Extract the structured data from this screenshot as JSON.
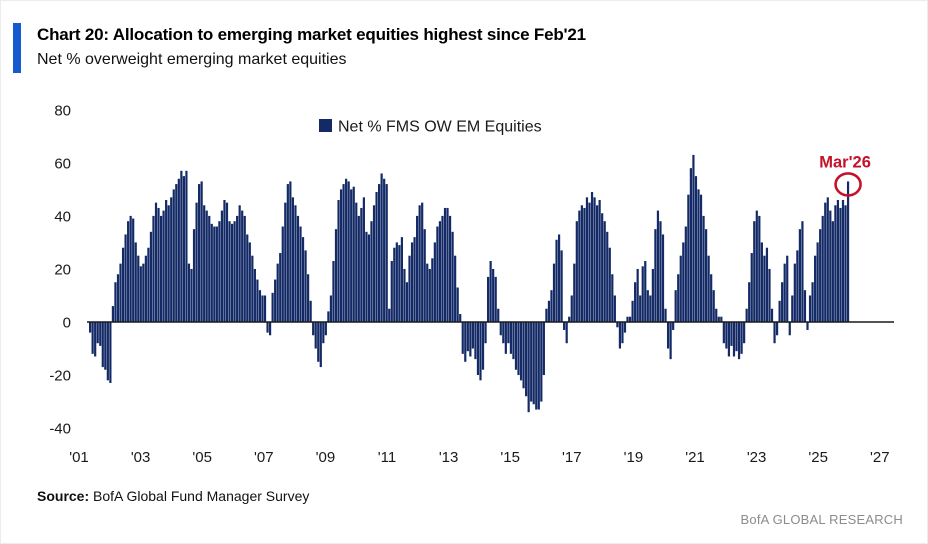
{
  "header": {
    "title": "Chart 20: Allocation to emerging market equities highest since Feb'21",
    "subtitle": "Net % overweight emerging market equities",
    "accent_color": "#1659d1"
  },
  "legend": {
    "label": "Net % FMS OW EM Equities",
    "swatch_color": "#132a66"
  },
  "annotation": {
    "label": "Mar'26",
    "value": 53,
    "color": "#c4122a"
  },
  "footer": {
    "source_label": "Source:",
    "source_text": " BofA Global Fund Manager Survey",
    "brand": "BofA GLOBAL RESEARCH"
  },
  "chart_data": {
    "type": "bar",
    "title": "Net % FMS OW EM Equities",
    "ylabel": "Net % overweight",
    "frequency": "monthly",
    "start": "2001-04",
    "end": "2026-03",
    "ylim": [
      -40,
      80
    ],
    "yticks": [
      80,
      60,
      40,
      20,
      0,
      -20,
      -40
    ],
    "xtick_labels": [
      "'01",
      "'03",
      "'05",
      "'07",
      "'09",
      "'11",
      "'13",
      "'15",
      "'17",
      "'19",
      "'21",
      "'23",
      "'25",
      "'27"
    ],
    "xtick_years": [
      2001,
      2003,
      2005,
      2007,
      2009,
      2011,
      2013,
      2015,
      2017,
      2019,
      2021,
      2023,
      2025,
      2027
    ],
    "grid": false,
    "legend_position": "top-center",
    "bar_color": "#132a66",
    "axis_color": "#1a1a1a",
    "values": [
      -4,
      -12,
      -13,
      -8,
      -9,
      -17,
      -18,
      -22,
      -23,
      6,
      15,
      18,
      22,
      28,
      33,
      38,
      40,
      39,
      30,
      25,
      21,
      22,
      25,
      28,
      34,
      40,
      45,
      43,
      40,
      42,
      46,
      44,
      47,
      50,
      52,
      54,
      57,
      55,
      57,
      22,
      20,
      35,
      45,
      52,
      53,
      44,
      42,
      40,
      37,
      36,
      36,
      38,
      42,
      46,
      45,
      38,
      37,
      38,
      40,
      44,
      42,
      40,
      33,
      30,
      25,
      20,
      16,
      12,
      10,
      10,
      -4,
      -5,
      11,
      16,
      22,
      26,
      36,
      45,
      52,
      53,
      47,
      44,
      40,
      36,
      32,
      27,
      18,
      8,
      -5,
      -10,
      -15,
      -17,
      -8,
      -5,
      4,
      10,
      23,
      35,
      46,
      50,
      52,
      54,
      53,
      50,
      51,
      45,
      40,
      43,
      47,
      34,
      33,
      38,
      44,
      49,
      52,
      56,
      54,
      52,
      5,
      23,
      28,
      30,
      29,
      32,
      20,
      15,
      25,
      30,
      32,
      40,
      44,
      45,
      35,
      22,
      20,
      24,
      30,
      36,
      38,
      40,
      43,
      43,
      40,
      34,
      25,
      13,
      3,
      -12,
      -15,
      -11,
      -13,
      -10,
      -14,
      -20,
      -22,
      -18,
      -8,
      17,
      23,
      20,
      17,
      5,
      -5,
      -8,
      -12,
      -8,
      -12,
      -14,
      -18,
      -20,
      -22,
      -25,
      -28,
      -34,
      -30,
      -31,
      -33,
      -33,
      -30,
      -20,
      5,
      8,
      12,
      22,
      31,
      33,
      27,
      -3,
      -8,
      2,
      10,
      22,
      38,
      42,
      44,
      43,
      47,
      45,
      49,
      47,
      44,
      46,
      41,
      38,
      34,
      28,
      18,
      10,
      -2,
      -10,
      -8,
      -4,
      2,
      2,
      8,
      15,
      20,
      10,
      21,
      23,
      12,
      10,
      20,
      35,
      42,
      38,
      33,
      5,
      -10,
      -14,
      -3,
      12,
      18,
      25,
      30,
      36,
      48,
      58,
      63,
      55,
      50,
      48,
      40,
      35,
      25,
      18,
      12,
      5,
      2,
      2,
      -8,
      -10,
      -13,
      -9,
      -13,
      -11,
      -14,
      -12,
      -8,
      5,
      15,
      26,
      38,
      42,
      40,
      30,
      25,
      28,
      20,
      5,
      -8,
      -5,
      8,
      15,
      22,
      25,
      -5,
      10,
      22,
      27,
      35,
      38,
      12,
      -3,
      10,
      15,
      25,
      30,
      35,
      40,
      45,
      47,
      42,
      38,
      44,
      46,
      43,
      46,
      44,
      53
    ],
    "last_point": {
      "label": "Mar'26",
      "value": 53
    }
  }
}
